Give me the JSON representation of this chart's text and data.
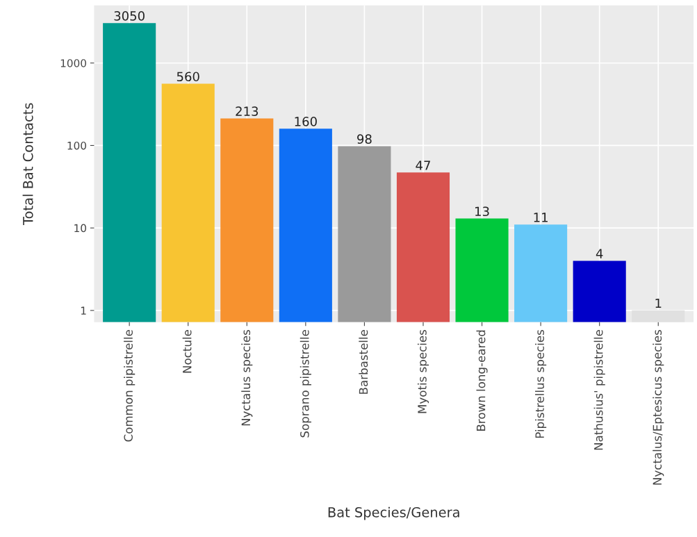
{
  "chart_data": {
    "type": "bar",
    "xlabel": "Bat Species/Genera",
    "ylabel": "Total Bat Contacts",
    "categories": [
      "Common pipistrelle",
      "Noctule",
      "Nyctalus species",
      "Soprano pipistrelle",
      "Barbastelle",
      "Myotis species",
      "Brown long-eared",
      "Pipistrellus species",
      "Nathusius' pipistrelle",
      "Nyctalus/Eptesicus species"
    ],
    "values": [
      3050,
      560,
      213,
      160,
      98,
      47,
      13,
      11,
      4,
      1
    ],
    "colors": [
      "#009b8f",
      "#f8c432",
      "#f7922f",
      "#0f6ff5",
      "#9a9a9a",
      "#d9534f",
      "#00c83c",
      "#66c8f8",
      "#0000c8",
      "#e0e0e0"
    ],
    "log": true,
    "ylim": [
      0.72,
      5000
    ],
    "yticks": [
      1,
      10,
      100,
      1000
    ],
    "grid": true,
    "data_labels": true
  }
}
